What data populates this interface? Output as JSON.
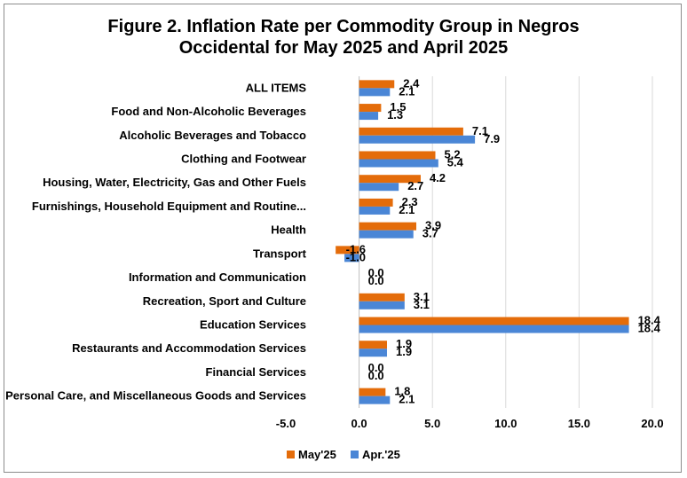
{
  "title_line1": "Figure 2. Inflation Rate per Commodity Group in Negros",
  "title_line2": "Occidental for May 2025 and April 2025",
  "chart_data": {
    "type": "bar",
    "orientation": "horizontal",
    "categories": [
      "ALL ITEMS",
      "Food and Non-Alcoholic Beverages",
      "Alcoholic Beverages and Tobacco",
      "Clothing and Footwear",
      "Housing, Water, Electricity, Gas and Other Fuels",
      "Furnishings, Household Equipment and Routine...",
      "Health",
      "Transport",
      "Information and Communication",
      "Recreation, Sport and Culture",
      "Education Services",
      "Restaurants and Accommodation Services",
      "Financial Services",
      "Personal Care, and Miscellaneous Goods and Services"
    ],
    "series": [
      {
        "name": "May'25",
        "color": "#e46c0a",
        "values": [
          2.4,
          1.5,
          7.1,
          5.2,
          4.2,
          2.3,
          3.9,
          -1.6,
          0.0,
          3.1,
          18.4,
          1.9,
          0.0,
          1.8
        ]
      },
      {
        "name": "Apr.'25",
        "color": "#4a86d6",
        "values": [
          2.1,
          1.3,
          7.9,
          5.4,
          2.7,
          2.1,
          3.7,
          -1.0,
          0.0,
          3.1,
          18.4,
          1.9,
          0.0,
          2.1
        ]
      }
    ],
    "xlim": [
      -5.0,
      20.0
    ],
    "xticks": [
      "-5.0",
      "0.0",
      "5.0",
      "10.0",
      "15.0",
      "20.0"
    ],
    "grid": true,
    "legend": "bottom-center"
  }
}
